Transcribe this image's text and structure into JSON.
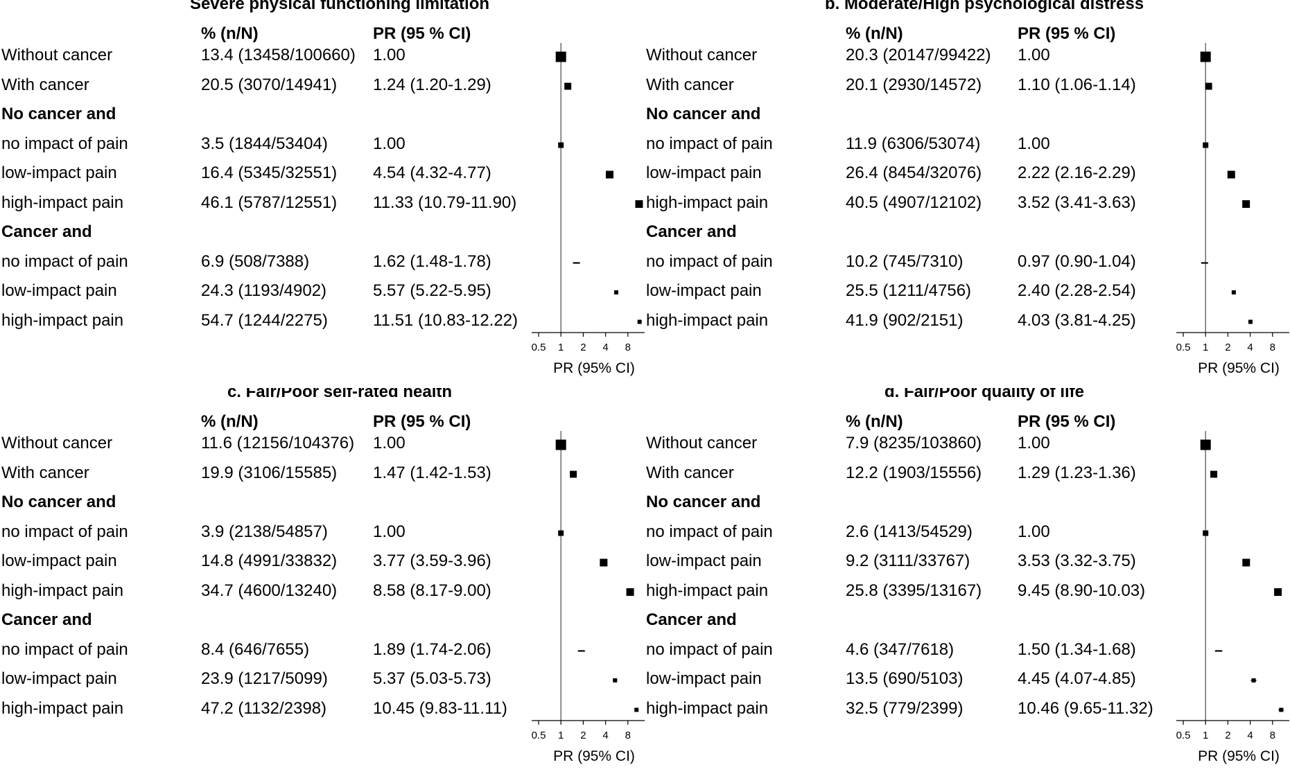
{
  "chart_data": [
    {
      "type": "forest",
      "title": "Severe physical functioning limitation",
      "col_headers": {
        "pct": "% (n/N)",
        "pr": "PR (95 % CI)"
      },
      "xlabel": "PR (95% CI)",
      "x_scale": "log2",
      "xlim": [
        0.5,
        16
      ],
      "xticks": [
        "0.5",
        "1",
        "2",
        "4",
        "8",
        "16"
      ],
      "reference_line": 1,
      "rows": [
        {
          "label": "Without cancer",
          "bold": false,
          "pct": "13.4 (13458/100660)",
          "pr": "1.00",
          "est": 1.0,
          "marker": "big"
        },
        {
          "label": "With cancer",
          "bold": false,
          "pct": "20.5 (3070/14941)",
          "pr": "1.24 (1.20-1.29)",
          "est": 1.24,
          "lo": 1.2,
          "hi": 1.29,
          "marker": "medium"
        },
        {
          "label": "No cancer and",
          "bold": true
        },
        {
          "label": "no impact of pain",
          "bold": false,
          "pct": "3.5 (1844/53404)",
          "pr": "1.00",
          "est": 1.0,
          "marker": "small"
        },
        {
          "label": "low-impact pain",
          "bold": false,
          "pct": "16.4 (5345/32551)",
          "pr": "4.54 (4.32-4.77)",
          "est": 4.54,
          "lo": 4.32,
          "hi": 4.77,
          "marker": "large"
        },
        {
          "label": "high-impact pain",
          "bold": false,
          "pct": "46.1 (5787/12551)",
          "pr": "11.33 (10.79-11.90)",
          "est": 11.33,
          "lo": 10.79,
          "hi": 11.9,
          "marker": "large"
        },
        {
          "label": "Cancer and",
          "bold": true
        },
        {
          "label": "no impact of pain",
          "bold": false,
          "pct": "6.9 (508/7388)",
          "pr": "1.62 (1.48-1.78)",
          "est": 1.62,
          "lo": 1.48,
          "hi": 1.78,
          "marker": "dash"
        },
        {
          "label": "low-impact pain",
          "bold": false,
          "pct": "24.3 (1193/4902)",
          "pr": "5.57 (5.22-5.95)",
          "est": 5.57,
          "lo": 5.22,
          "hi": 5.95,
          "marker": "tiny"
        },
        {
          "label": "high-impact pain",
          "bold": false,
          "pct": "54.7 (1244/2275)",
          "pr": "11.51 (10.83-12.22)",
          "est": 11.51,
          "lo": 10.83,
          "hi": 12.22,
          "marker": "tiny"
        }
      ]
    },
    {
      "type": "forest",
      "title": "b. Moderate/High psychological distress",
      "col_headers": {
        "pct": "% (n/N)",
        "pr": "PR (95 % CI)"
      },
      "xlabel": "PR (95% CI)",
      "x_scale": "log2",
      "xlim": [
        0.5,
        16
      ],
      "xticks": [
        "0.5",
        "1",
        "2",
        "4",
        "8",
        "16"
      ],
      "reference_line": 1,
      "rows": [
        {
          "label": "Without cancer",
          "bold": false,
          "pct": "20.3 (20147/99422)",
          "pr": "1.00",
          "est": 1.0,
          "marker": "big"
        },
        {
          "label": "With cancer",
          "bold": false,
          "pct": "20.1 (2930/14572)",
          "pr": "1.10 (1.06-1.14)",
          "est": 1.1,
          "lo": 1.06,
          "hi": 1.14,
          "marker": "medium"
        },
        {
          "label": "No cancer and",
          "bold": true
        },
        {
          "label": "no impact of pain",
          "bold": false,
          "pct": "11.9 (6306/53074)",
          "pr": "1.00",
          "est": 1.0,
          "marker": "small"
        },
        {
          "label": "low-impact pain",
          "bold": false,
          "pct": "26.4 (8454/32076)",
          "pr": "2.22 (2.16-2.29)",
          "est": 2.22,
          "lo": 2.16,
          "hi": 2.29,
          "marker": "large"
        },
        {
          "label": "high-impact pain",
          "bold": false,
          "pct": "40.5 (4907/12102)",
          "pr": "3.52 (3.41-3.63)",
          "est": 3.52,
          "lo": 3.41,
          "hi": 3.63,
          "marker": "large"
        },
        {
          "label": "Cancer and",
          "bold": true
        },
        {
          "label": "no impact of pain",
          "bold": false,
          "pct": "10.2 (745/7310)",
          "pr": "0.97 (0.90-1.04)",
          "est": 0.97,
          "lo": 0.9,
          "hi": 1.04,
          "marker": "dash"
        },
        {
          "label": "low-impact pain",
          "bold": false,
          "pct": "25.5 (1211/4756)",
          "pr": "2.40 (2.28-2.54)",
          "est": 2.4,
          "lo": 2.28,
          "hi": 2.54,
          "marker": "tiny"
        },
        {
          "label": "high-impact pain",
          "bold": false,
          "pct": "41.9 (902/2151)",
          "pr": "4.03 (3.81-4.25)",
          "est": 4.03,
          "lo": 3.81,
          "hi": 4.25,
          "marker": "tiny"
        }
      ]
    },
    {
      "type": "forest",
      "title": "c. Fair/Poor self-rated health",
      "col_headers": {
        "pct": "% (n/N)",
        "pr": "PR (95 % CI)"
      },
      "xlabel": "PR (95% CI)",
      "x_scale": "log2",
      "xlim": [
        0.5,
        16
      ],
      "xticks": [
        "0.5",
        "1",
        "2",
        "4",
        "8",
        "16"
      ],
      "reference_line": 1,
      "rows": [
        {
          "label": "Without cancer",
          "bold": false,
          "pct": "11.6 (12156/104376)",
          "pr": "1.00",
          "est": 1.0,
          "marker": "big"
        },
        {
          "label": "With cancer",
          "bold": false,
          "pct": "19.9 (3106/15585)",
          "pr": "1.47 (1.42-1.53)",
          "est": 1.47,
          "lo": 1.42,
          "hi": 1.53,
          "marker": "medium"
        },
        {
          "label": "No cancer and",
          "bold": true
        },
        {
          "label": "no impact of pain",
          "bold": false,
          "pct": "3.9 (2138/54857)",
          "pr": "1.00",
          "est": 1.0,
          "marker": "small"
        },
        {
          "label": "low-impact pain",
          "bold": false,
          "pct": "14.8 (4991/33832)",
          "pr": "3.77 (3.59-3.96)",
          "est": 3.77,
          "lo": 3.59,
          "hi": 3.96,
          "marker": "large"
        },
        {
          "label": "high-impact pain",
          "bold": false,
          "pct": "34.7 (4600/13240)",
          "pr": "8.58 (8.17-9.00)",
          "est": 8.58,
          "lo": 8.17,
          "hi": 9.0,
          "marker": "large"
        },
        {
          "label": "Cancer and",
          "bold": true
        },
        {
          "label": "no impact of pain",
          "bold": false,
          "pct": "8.4 (646/7655)",
          "pr": "1.89 (1.74-2.06)",
          "est": 1.89,
          "lo": 1.74,
          "hi": 2.06,
          "marker": "dash"
        },
        {
          "label": "low-impact pain",
          "bold": false,
          "pct": "23.9 (1217/5099)",
          "pr": "5.37 (5.03-5.73)",
          "est": 5.37,
          "lo": 5.03,
          "hi": 5.73,
          "marker": "tiny"
        },
        {
          "label": "high-impact pain",
          "bold": false,
          "pct": "47.2 (1132/2398)",
          "pr": "10.45 (9.83-11.11)",
          "est": 10.45,
          "lo": 9.83,
          "hi": 11.11,
          "marker": "tiny"
        }
      ]
    },
    {
      "type": "forest",
      "title": "d. Fair/Poor quality of life",
      "col_headers": {
        "pct": "% (n/N)",
        "pr": "PR (95 % CI)"
      },
      "xlabel": "PR (95% CI)",
      "x_scale": "log2",
      "xlim": [
        0.5,
        16
      ],
      "xticks": [
        "0.5",
        "1",
        "2",
        "4",
        "8",
        "16"
      ],
      "reference_line": 1,
      "rows": [
        {
          "label": "Without cancer",
          "bold": false,
          "pct": "7.9 (8235/103860)",
          "pr": "1.00",
          "est": 1.0,
          "marker": "big"
        },
        {
          "label": "With cancer",
          "bold": false,
          "pct": "12.2 (1903/15556)",
          "pr": "1.29 (1.23-1.36)",
          "est": 1.29,
          "lo": 1.23,
          "hi": 1.36,
          "marker": "medium"
        },
        {
          "label": "No cancer and",
          "bold": true
        },
        {
          "label": "no impact of pain",
          "bold": false,
          "pct": "2.6 (1413/54529)",
          "pr": "1.00",
          "est": 1.0,
          "marker": "small"
        },
        {
          "label": "low-impact pain",
          "bold": false,
          "pct": "9.2 (3111/33767)",
          "pr": "3.53 (3.32-3.75)",
          "est": 3.53,
          "lo": 3.32,
          "hi": 3.75,
          "marker": "large"
        },
        {
          "label": "high-impact pain",
          "bold": false,
          "pct": "25.8 (3395/13167)",
          "pr": "9.45 (8.90-10.03)",
          "est": 9.45,
          "lo": 8.9,
          "hi": 10.03,
          "marker": "large"
        },
        {
          "label": "Cancer and",
          "bold": true
        },
        {
          "label": "no impact of pain",
          "bold": false,
          "pct": "4.6 (347/7618)",
          "pr": "1.50 (1.34-1.68)",
          "est": 1.5,
          "lo": 1.34,
          "hi": 1.68,
          "marker": "dash"
        },
        {
          "label": "low-impact pain",
          "bold": false,
          "pct": "13.5 (690/5103)",
          "pr": "4.45 (4.07-4.85)",
          "est": 4.45,
          "lo": 4.07,
          "hi": 4.85,
          "marker": "tiny"
        },
        {
          "label": "high-impact pain",
          "bold": false,
          "pct": "32.5 (779/2399)",
          "pr": "10.46 (9.65-11.32)",
          "est": 10.46,
          "lo": 9.65,
          "hi": 11.32,
          "marker": "tiny"
        }
      ]
    }
  ]
}
